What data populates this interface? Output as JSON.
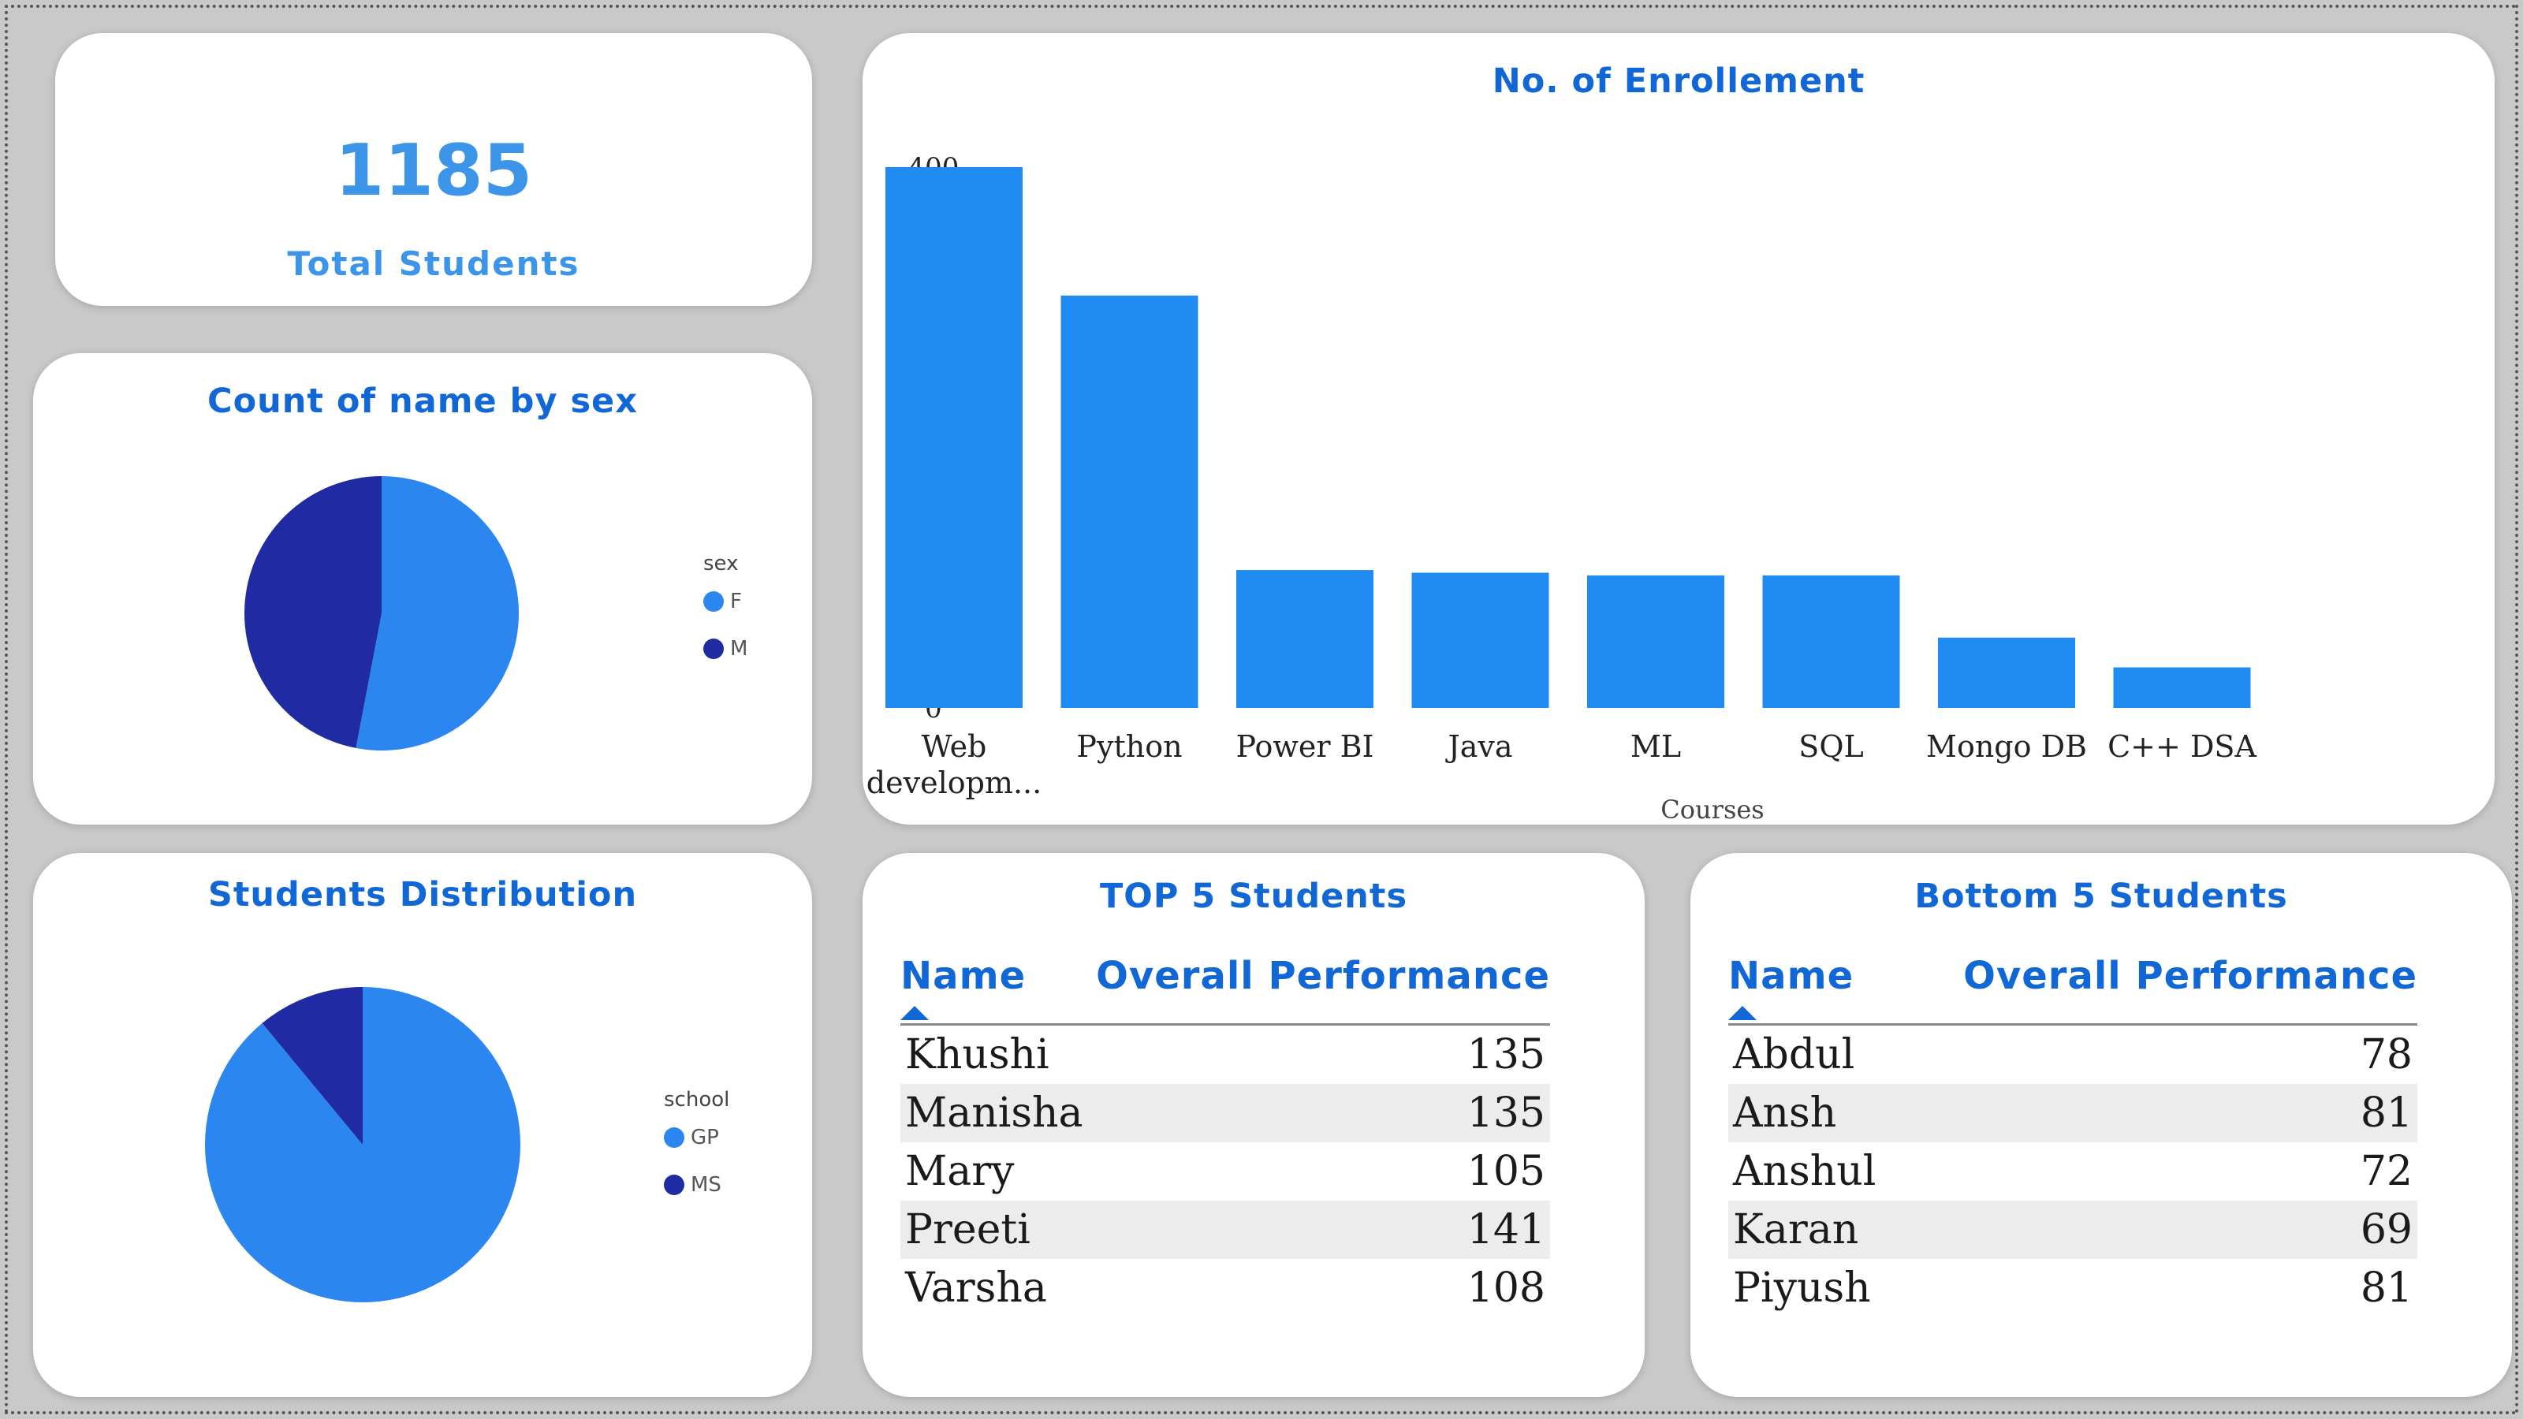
{
  "kpi": {
    "value": "1185",
    "label": "Total Students"
  },
  "sex_chart": {
    "title": "Count of name by sex",
    "legend_title": "sex",
    "legend": [
      {
        "label": "F",
        "color": "#2b86ef"
      },
      {
        "label": "M",
        "color": "#1f2aa3"
      }
    ]
  },
  "distribution_chart": {
    "title": "Students Distribution",
    "legend_title": "school",
    "legend": [
      {
        "label": "GP",
        "color": "#2b86ef"
      },
      {
        "label": "MS",
        "color": "#1f2aa3"
      }
    ]
  },
  "top_table": {
    "title": "TOP 5 Students",
    "columns": [
      "Name",
      "Overall Performance"
    ],
    "rows": [
      {
        "name": "Khushi",
        "score": "135"
      },
      {
        "name": "Manisha",
        "score": "135"
      },
      {
        "name": "Mary",
        "score": "105"
      },
      {
        "name": "Preeti",
        "score": "141"
      },
      {
        "name": "Varsha",
        "score": "108"
      }
    ]
  },
  "bottom_table": {
    "title": "Bottom 5 Students",
    "columns": [
      "Name",
      "Overall Performance"
    ],
    "rows": [
      {
        "name": "Abdul",
        "score": "78"
      },
      {
        "name": "Ansh",
        "score": "81"
      },
      {
        "name": "Anshul",
        "score": "72"
      },
      {
        "name": "Karan",
        "score": "69"
      },
      {
        "name": "Piyush",
        "score": "81"
      }
    ]
  },
  "chart_data": [
    {
      "type": "bar",
      "title": "No. of Enrollement",
      "xlabel": "Courses",
      "ylabel": "",
      "categories": [
        "Web developm...",
        "Python",
        "Power BI",
        "Java",
        "ML",
        "SQL",
        "Mongo DB",
        "C++ DSA"
      ],
      "values": [
        400,
        305,
        102,
        100,
        98,
        98,
        52,
        30
      ],
      "ylim": [
        0,
        400
      ],
      "yticks": [
        0,
        100,
        200,
        300,
        400
      ],
      "color": "#1f8bf3"
    },
    {
      "type": "pie",
      "title": "Count of name by sex",
      "labels": [
        "F",
        "M"
      ],
      "values": [
        53,
        47
      ],
      "colors": [
        "#2b86ef",
        "#1f2aa3"
      ]
    },
    {
      "type": "pie",
      "title": "Students Distribution",
      "labels": [
        "GP",
        "MS"
      ],
      "values": [
        89,
        11
      ],
      "colors": [
        "#2b86ef",
        "#1f2aa3"
      ]
    }
  ]
}
